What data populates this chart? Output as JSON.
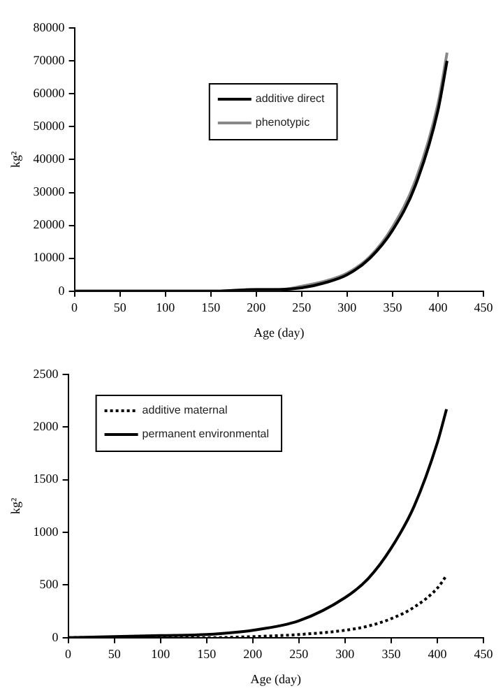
{
  "chart_data": [
    {
      "type": "line",
      "xlabel": "Age (day)",
      "ylabel": "kg²",
      "xlim": [
        0,
        450
      ],
      "xticks": [
        0,
        50,
        100,
        150,
        200,
        250,
        300,
        350,
        400,
        450
      ],
      "ylim": [
        0,
        80000
      ],
      "yticks": [
        0,
        10000,
        20000,
        30000,
        40000,
        50000,
        60000,
        70000,
        80000
      ],
      "grid": false,
      "legend": "top",
      "marker": "none",
      "x": [
        0,
        50,
        100,
        150,
        200,
        225,
        250,
        275,
        300,
        325,
        350,
        375,
        400,
        410
      ],
      "series": [
        {
          "name": "additive direct",
          "color": "#000000",
          "line_style": "solid",
          "values": [
            0,
            0,
            0,
            0,
            500,
            500,
            1000,
            2500,
            5000,
            10000,
            18500,
            32000,
            55000,
            70000
          ]
        },
        {
          "name": "phenotypic",
          "color": "#888888",
          "line_style": "solid",
          "values": [
            0,
            0,
            0,
            0,
            500,
            500,
            1500,
            3000,
            5500,
            10500,
            19500,
            33500,
            57000,
            72500
          ]
        }
      ]
    },
    {
      "type": "line",
      "xlabel": "Age (day)",
      "ylabel": "kg²",
      "xlim": [
        0,
        450
      ],
      "xticks": [
        0,
        50,
        100,
        150,
        200,
        250,
        300,
        350,
        400,
        450
      ],
      "ylim": [
        0,
        2500
      ],
      "yticks": [
        0,
        500,
        1000,
        1500,
        2000,
        2500
      ],
      "grid": false,
      "legend": "top left",
      "marker": "none",
      "x": [
        0,
        50,
        100,
        150,
        200,
        250,
        300,
        325,
        350,
        375,
        400,
        410
      ],
      "series": [
        {
          "name": "additive maternal",
          "color": "#000000",
          "line_style": "dotted",
          "values": [
            0,
            0,
            0,
            0,
            10,
            30,
            70,
            110,
            180,
            290,
            470,
            590
          ]
        },
        {
          "name": "permanent environmental",
          "color": "#000000",
          "line_style": "solid",
          "values": [
            0,
            10,
            20,
            30,
            70,
            160,
            380,
            560,
            850,
            1250,
            1850,
            2170
          ]
        }
      ]
    }
  ]
}
